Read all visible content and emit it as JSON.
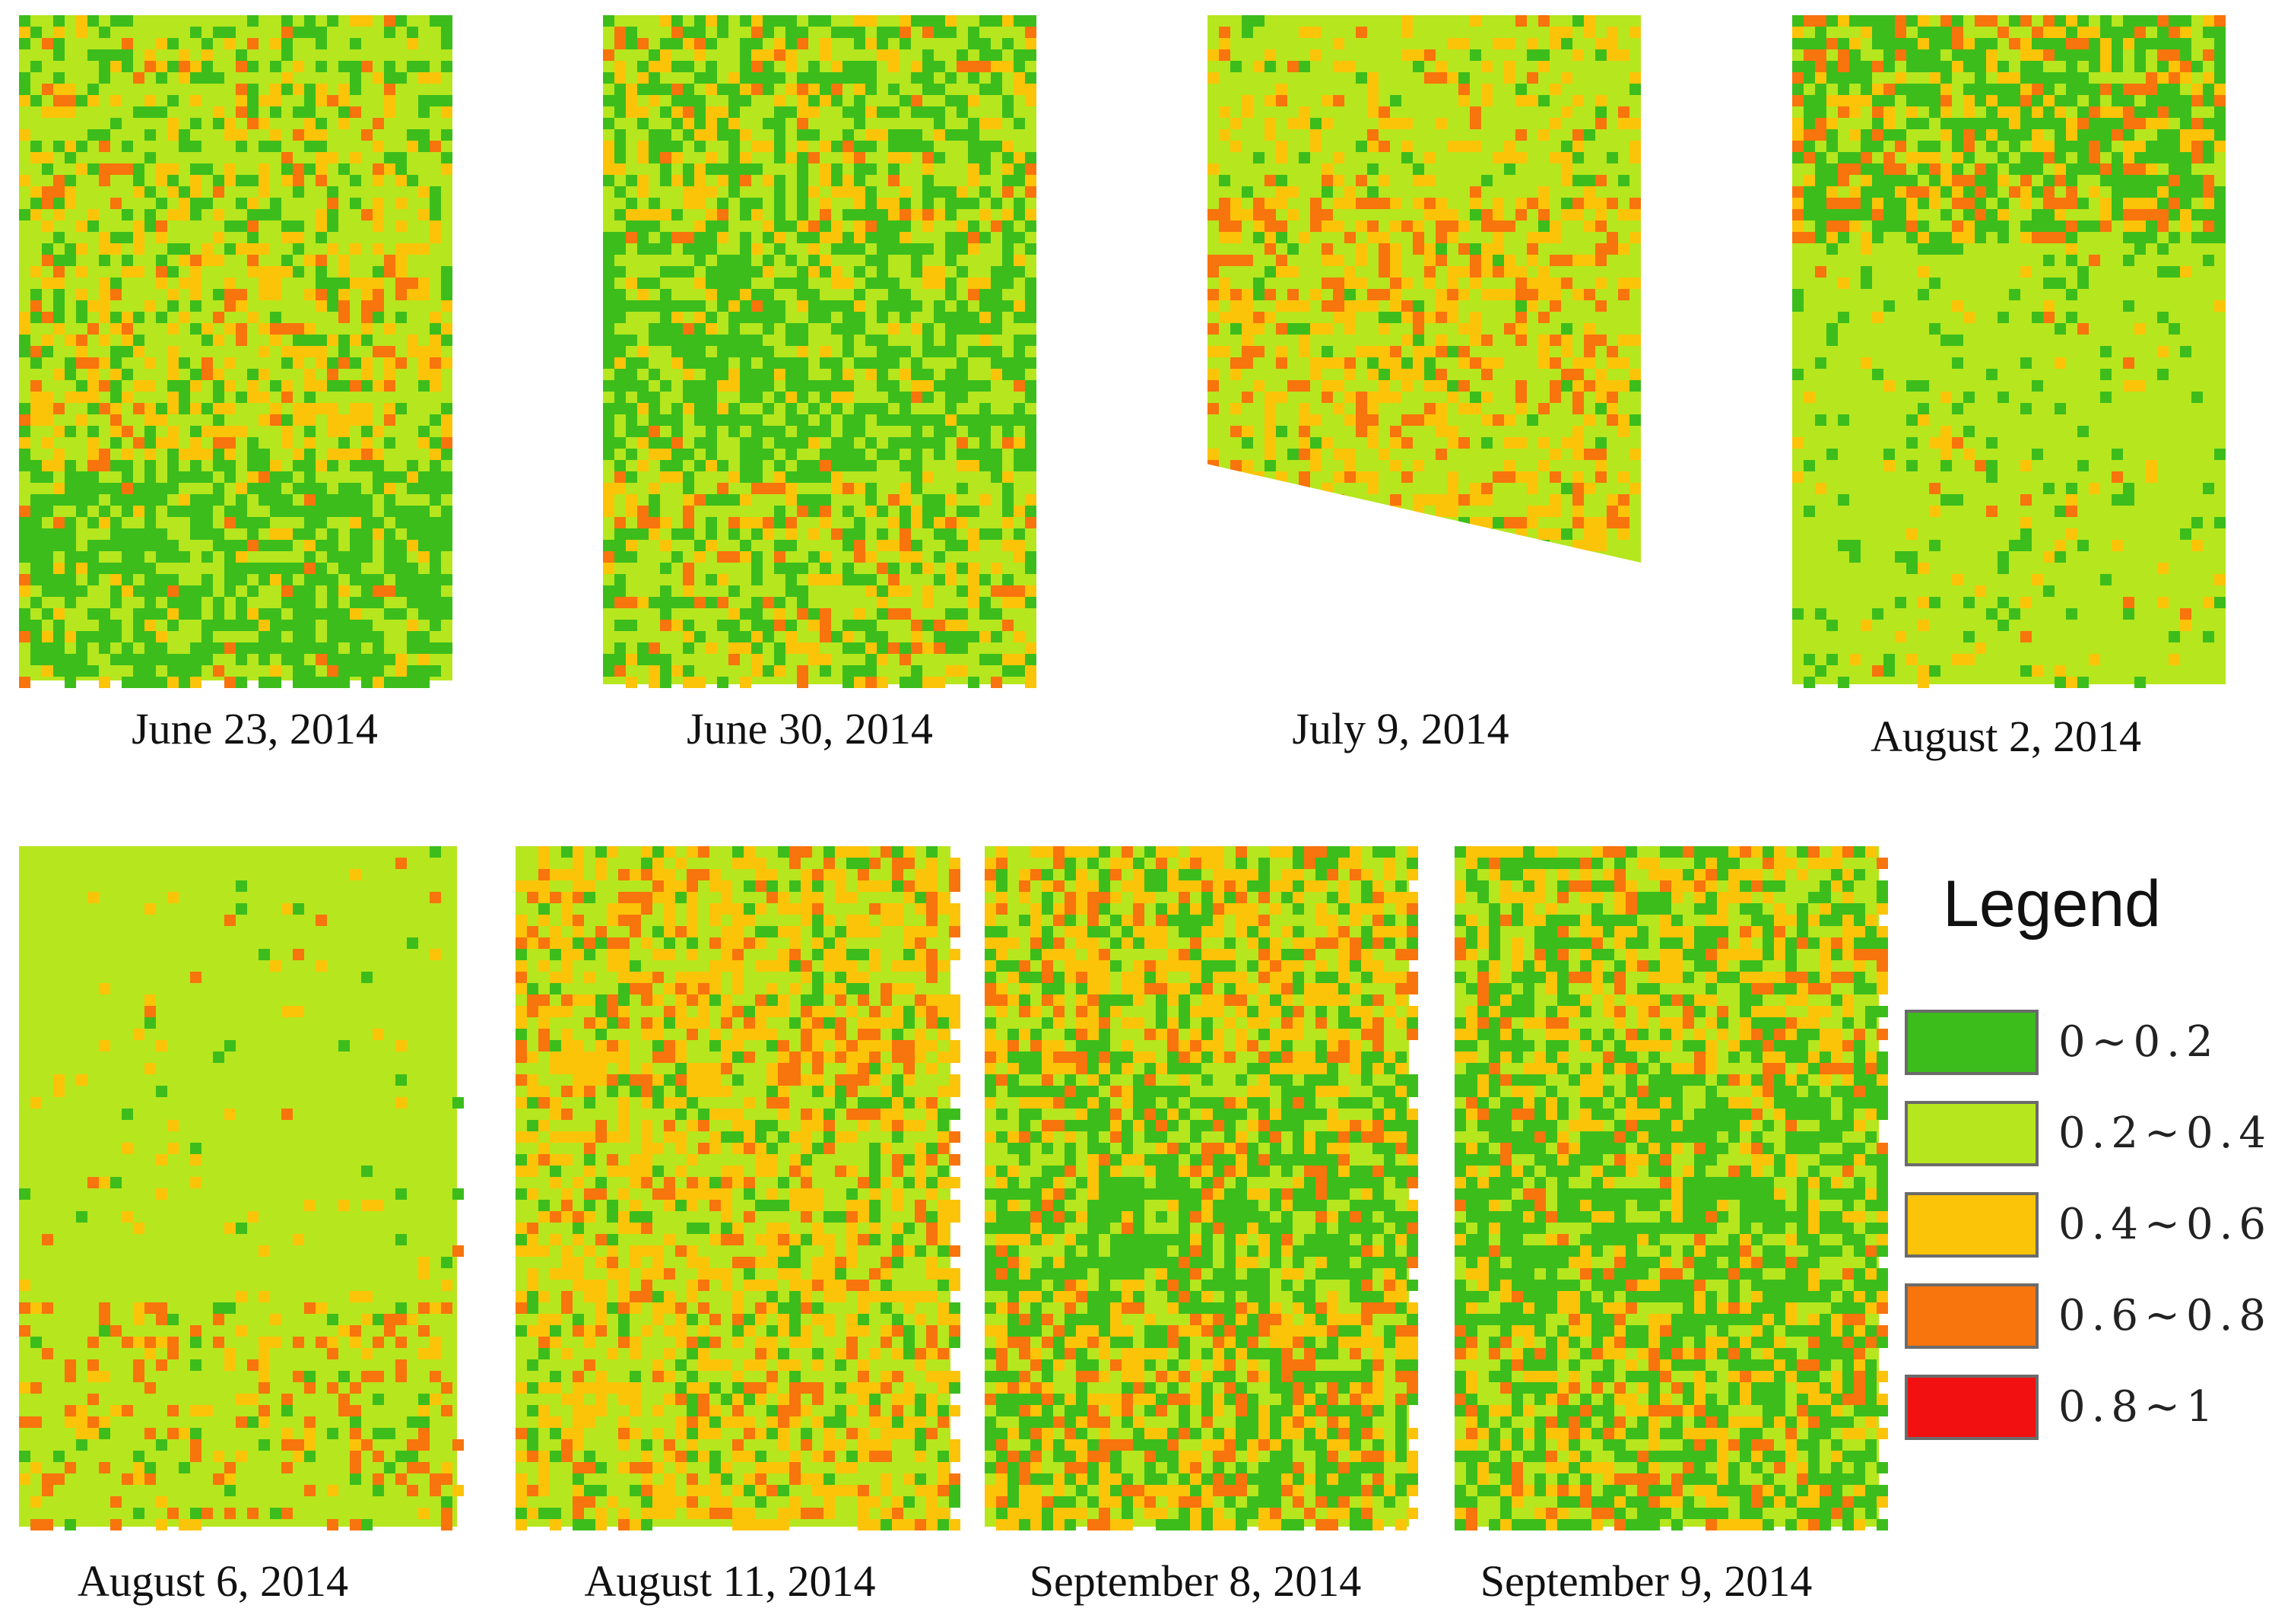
{
  "legend": {
    "title": "Legend",
    "items": [
      {
        "label": "0~0.2",
        "color": "#3cbd1c"
      },
      {
        "label": "0.2~0.4",
        "color": "#b6e61e"
      },
      {
        "label": "0.4~0.6",
        "color": "#fcc408"
      },
      {
        "label": "0.6~0.8",
        "color": "#f8740c"
      },
      {
        "label": "0.8~1",
        "color": "#f21010"
      }
    ]
  },
  "maps": [
    {
      "caption": "June 23, 2014"
    },
    {
      "caption": "June 30, 2014"
    },
    {
      "caption": "July 9, 2014"
    },
    {
      "caption": "August 2, 2014"
    },
    {
      "caption": "August 6, 2014"
    },
    {
      "caption": "August 11, 2014"
    },
    {
      "caption": "September 8, 2014"
    },
    {
      "caption": "September 9, 2014"
    }
  ]
}
